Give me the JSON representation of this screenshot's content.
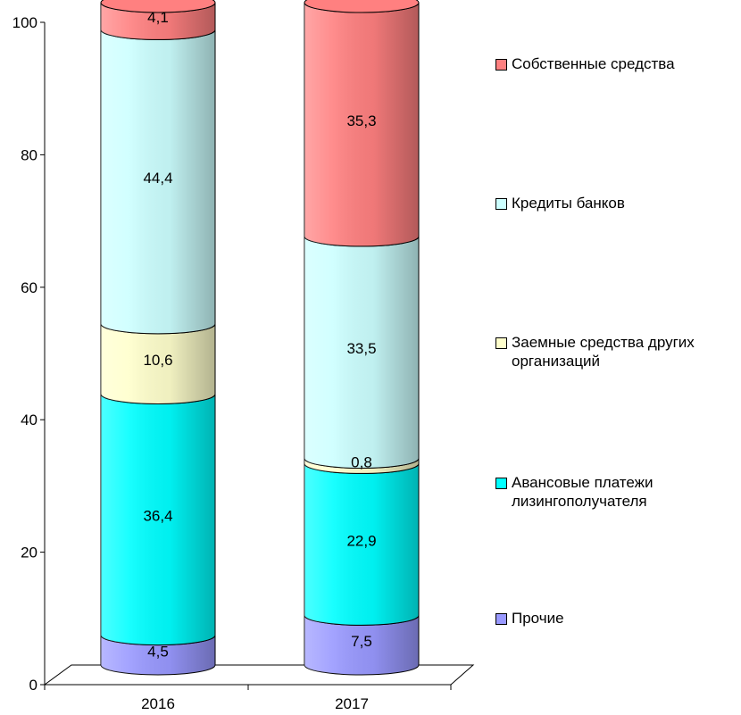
{
  "chart_data": {
    "type": "bar",
    "stacked": true,
    "style": "3d-cylinder",
    "categories": [
      "2016",
      "2017"
    ],
    "ylim": [
      0,
      100
    ],
    "yticks": [
      "0",
      "20",
      "40",
      "60",
      "80",
      "100"
    ],
    "grid": false,
    "legend_position": "right",
    "series": [
      {
        "name": "Прочие",
        "values": [
          4.5,
          7.5
        ],
        "labels": [
          "4,5",
          "7,5"
        ],
        "color": "#9999ff"
      },
      {
        "name": "Авансовые платежи лизингополучателя",
        "values": [
          36.4,
          22.9
        ],
        "labels": [
          "36,4",
          "22,9"
        ],
        "color": "#00ffff"
      },
      {
        "name": "Заемные средства других организаций",
        "values": [
          10.6,
          0.8
        ],
        "labels": [
          "10,6",
          "0,8"
        ],
        "color": "#ffffcc"
      },
      {
        "name": "Кредиты банков",
        "values": [
          44.4,
          33.5
        ],
        "labels": [
          "44,4",
          "33,5"
        ],
        "color": "#ccffff"
      },
      {
        "name": "Собственные средства",
        "values": [
          4.1,
          35.3
        ],
        "labels": [
          "4,1",
          "35,3"
        ],
        "color": "#ff8080"
      }
    ]
  },
  "legend": {
    "items": [
      {
        "label": "Собственные средства",
        "color": "#ff8080"
      },
      {
        "label": "Кредиты банков",
        "color": "#ccffff"
      },
      {
        "label": "Заемные средства других\nорганизаций",
        "color": "#ffffcc"
      },
      {
        "label": "Авансовые платежи\nлизингополучателя",
        "color": "#00ffff"
      },
      {
        "label": "Прочие",
        "color": "#9999ff"
      }
    ]
  }
}
